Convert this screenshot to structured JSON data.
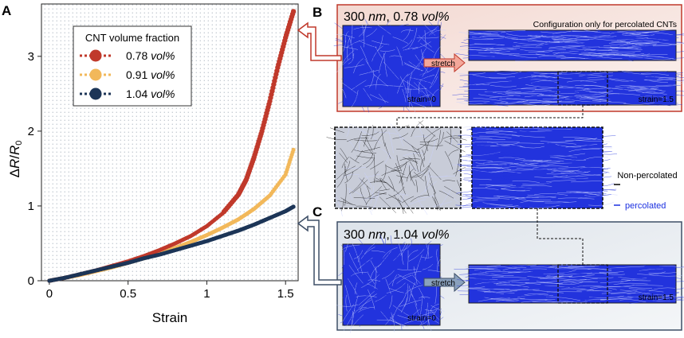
{
  "panels": {
    "a": {
      "letter": "A"
    },
    "b": {
      "letter": "B",
      "title_prefix": "300 ",
      "title_unit": "nm",
      "title_mid": ", 0.78 ",
      "title_frac": "vol%",
      "config_note": "Configuration only for percolated CNTs",
      "stretch_label": "stretch",
      "strain_initial": "strain=0",
      "strain_final": "strain=1.5"
    },
    "c": {
      "letter": "C",
      "title_prefix": "300 ",
      "title_unit": "nm",
      "title_mid": ", 1.04 ",
      "title_frac": "vol%",
      "stretch_label": "stretch",
      "strain_initial": "strain=0",
      "strain_final": "strain=1.5"
    }
  },
  "network_legend": {
    "non_percolated": "Non-percolated",
    "non_percolated_color": "#000000",
    "percolated": "percolated",
    "percolated_color": "#1a2fe0"
  },
  "colors": {
    "red": "#c0392b",
    "yellow": "#f2b85a",
    "navy": "#1c3557",
    "panel_b_border": "#c0392b",
    "panel_c_border": "#3d4e66",
    "network_blue": "#2233dd"
  },
  "legend_title": "CNT volume fraction",
  "chart_data": {
    "type": "scatter",
    "title": "",
    "xlabel": "Strain",
    "ylabel": "ΔR/R0",
    "xlim": [
      -0.05,
      1.58
    ],
    "ylim": [
      0,
      3.7
    ],
    "xticks": [
      0,
      0.5,
      1,
      1.5
    ],
    "xtick_labels": [
      "0",
      "0.5",
      "1",
      "1.5"
    ],
    "yticks": [
      0,
      1,
      2,
      3
    ],
    "ytick_labels": [
      "0",
      "1",
      "2",
      "3"
    ],
    "legend_position": "top-left",
    "series": [
      {
        "name": "0.78 vol%",
        "value_label": "0.78",
        "unit_label": "vol%",
        "color": "#c0392b",
        "x": [
          0,
          0.1,
          0.2,
          0.3,
          0.4,
          0.5,
          0.6,
          0.7,
          0.8,
          0.9,
          1.0,
          1.1,
          1.2,
          1.25,
          1.3,
          1.35,
          1.4,
          1.45,
          1.5,
          1.55
        ],
        "y": [
          0,
          0.04,
          0.09,
          0.14,
          0.2,
          0.26,
          0.33,
          0.41,
          0.5,
          0.6,
          0.73,
          0.9,
          1.15,
          1.35,
          1.65,
          2.0,
          2.4,
          2.85,
          3.25,
          3.6
        ]
      },
      {
        "name": "0.91 vol%",
        "value_label": "0.91",
        "unit_label": "vol%",
        "color": "#f2b85a",
        "x": [
          0,
          0.1,
          0.2,
          0.3,
          0.4,
          0.5,
          0.6,
          0.7,
          0.8,
          0.9,
          1.0,
          1.1,
          1.2,
          1.3,
          1.4,
          1.5,
          1.55
        ],
        "y": [
          0,
          0.04,
          0.08,
          0.13,
          0.18,
          0.24,
          0.3,
          0.37,
          0.44,
          0.52,
          0.61,
          0.71,
          0.82,
          0.96,
          1.14,
          1.42,
          1.75
        ]
      },
      {
        "name": "1.04 vol%",
        "value_label": "1.04",
        "unit_label": "vol%",
        "color": "#1c3557",
        "x": [
          0,
          0.1,
          0.2,
          0.3,
          0.4,
          0.5,
          0.6,
          0.7,
          0.8,
          0.9,
          1.0,
          1.1,
          1.2,
          1.3,
          1.4,
          1.5,
          1.55
        ],
        "y": [
          0,
          0.04,
          0.09,
          0.14,
          0.19,
          0.24,
          0.3,
          0.35,
          0.41,
          0.47,
          0.53,
          0.6,
          0.67,
          0.75,
          0.84,
          0.93,
          0.99
        ]
      }
    ]
  }
}
